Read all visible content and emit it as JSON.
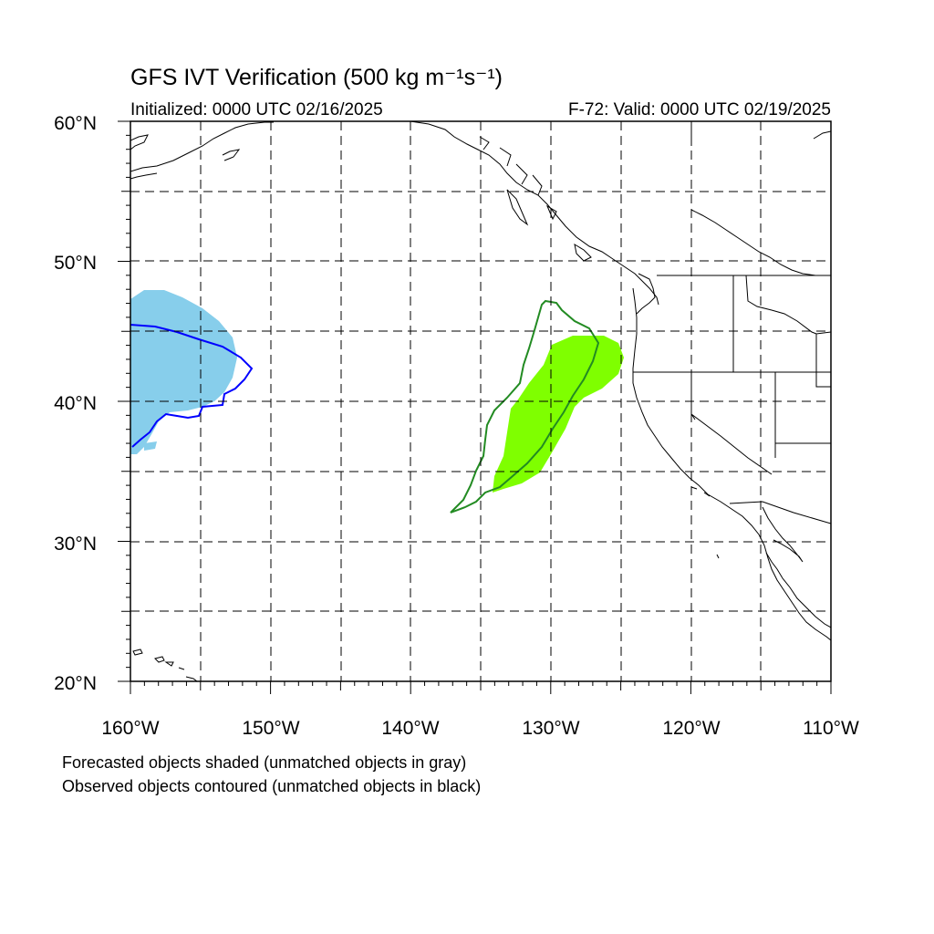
{
  "title": "GFS IVT Verification (500 kg m⁻¹s⁻¹)",
  "initialized": "Initialized: 0000 UTC 02/16/2025",
  "valid": "F-72: Valid: 0000 UTC 02/19/2025",
  "lat_labels": [
    "60°N",
    "50°N",
    "40°N",
    "30°N",
    "20°N"
  ],
  "lon_labels": [
    "160°W",
    "150°W",
    "140°W",
    "130°W",
    "120°W",
    "110°W"
  ],
  "footer": {
    "line1": "Forecasted objects shaded (unmatched objects in gray)",
    "line2": "Observed objects contoured (unmatched objects in black)"
  },
  "colors": {
    "forecast_object_1": "#87ceeb",
    "observed_object_1": "#0000ff",
    "forecast_object_2": "#7fff00",
    "observed_object_2": "#228b22",
    "coastline": "#000000",
    "grid": "#000000"
  }
}
